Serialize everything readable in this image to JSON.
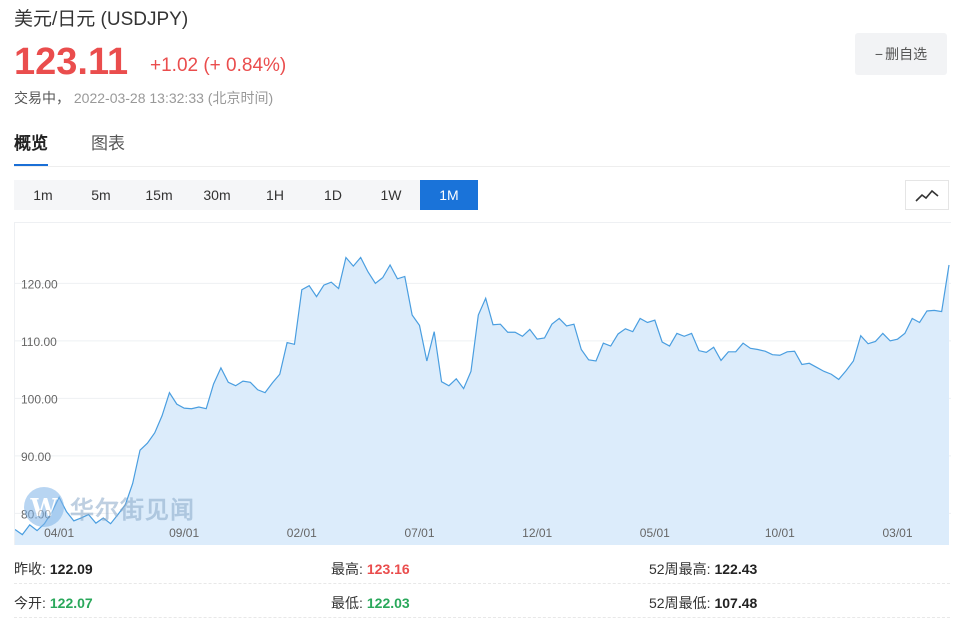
{
  "header": {
    "title": "美元/日元  (USDJPY)",
    "price": "123.11",
    "change": "+1.02 (+ 0.84%)",
    "status_label": "交易中，",
    "timestamp": "2022-03-28 13:32:33",
    "timezone": "(北京时间)",
    "fav_button_label": "删自选"
  },
  "tabs": [
    {
      "label": "概览",
      "active": true
    },
    {
      "label": "图表",
      "active": false
    }
  ],
  "periods": [
    {
      "label": "1m",
      "active": false
    },
    {
      "label": "5m",
      "active": false
    },
    {
      "label": "15m",
      "active": false
    },
    {
      "label": "30m",
      "active": false
    },
    {
      "label": "1H",
      "active": false
    },
    {
      "label": "1D",
      "active": false
    },
    {
      "label": "1W",
      "active": false
    },
    {
      "label": "1M",
      "active": true
    }
  ],
  "watermark": {
    "logo_letter": "W",
    "text": "华尔街见闻"
  },
  "colors": {
    "up": "#ea4d4d",
    "down": "#2aa85b",
    "accent": "#1a73d9",
    "line": "#4a9ee0",
    "area": "#dcecfb"
  },
  "chart_data": {
    "type": "area",
    "y_ticks": [
      "80.00",
      "90.00",
      "100.00",
      "110.00",
      "120.00"
    ],
    "y_tick_values": [
      80,
      90,
      100,
      110,
      120
    ],
    "ylim": [
      74.5,
      130.5
    ],
    "x_tick_labels": [
      "04/01",
      "09/01",
      "02/01",
      "07/01",
      "12/01",
      "05/01",
      "10/01",
      "03/01"
    ],
    "x_tick_index": [
      6,
      23,
      39,
      55,
      71,
      87,
      104,
      120
    ],
    "grid": "horizontal",
    "values": [
      77.2,
      76.3,
      78.0,
      77.0,
      78.2,
      80.2,
      82.8,
      80.3,
      78.7,
      79.2,
      79.8,
      78.3,
      79.2,
      78.2,
      79.8,
      81.5,
      85.2,
      91.0,
      92.2,
      94.0,
      97.0,
      101.0,
      99.0,
      98.3,
      98.2,
      98.5,
      98.2,
      102.5,
      105.3,
      102.8,
      102.2,
      103.0,
      102.8,
      101.5,
      101.0,
      102.7,
      104.2,
      109.7,
      109.4,
      118.9,
      119.6,
      117.7,
      119.7,
      120.2,
      119.1,
      124.5,
      123.0,
      124.5,
      122.0,
      120.0,
      121.0,
      123.2,
      120.8,
      121.2,
      114.5,
      112.7,
      106.5,
      111.6,
      102.9,
      102.2,
      103.4,
      101.7,
      104.7,
      114.5,
      117.4,
      112.8,
      112.9,
      111.5,
      111.5,
      110.8,
      112.0,
      110.3,
      110.5,
      112.9,
      113.9,
      112.6,
      112.9,
      108.5,
      106.7,
      106.5,
      109.6,
      109.1,
      111.2,
      112.1,
      111.6,
      113.9,
      113.2,
      113.6,
      109.8,
      109.1,
      111.3,
      110.8,
      111.3,
      108.3,
      108.0,
      108.9,
      106.6,
      108.1,
      108.1,
      109.6,
      108.7,
      108.5,
      108.2,
      107.6,
      107.5,
      108.1,
      108.2,
      105.9,
      106.1,
      105.4,
      104.7,
      104.2,
      103.3,
      104.8,
      106.5,
      110.9,
      109.5,
      109.9,
      111.3,
      110.0,
      110.3,
      111.3,
      113.9,
      113.2,
      115.2,
      115.3,
      115.1,
      123.2
    ]
  },
  "stats": {
    "prev_close_label": "昨收:",
    "prev_close": "122.09",
    "high_label": "最高:",
    "high": "123.16",
    "w52_high_label": "52周最高:",
    "w52_high": "122.43",
    "open_label": "今开:",
    "open": "122.07",
    "low_label": "最低:",
    "low": "122.03",
    "w52_low_label": "52周最低:",
    "w52_low": "107.48"
  }
}
